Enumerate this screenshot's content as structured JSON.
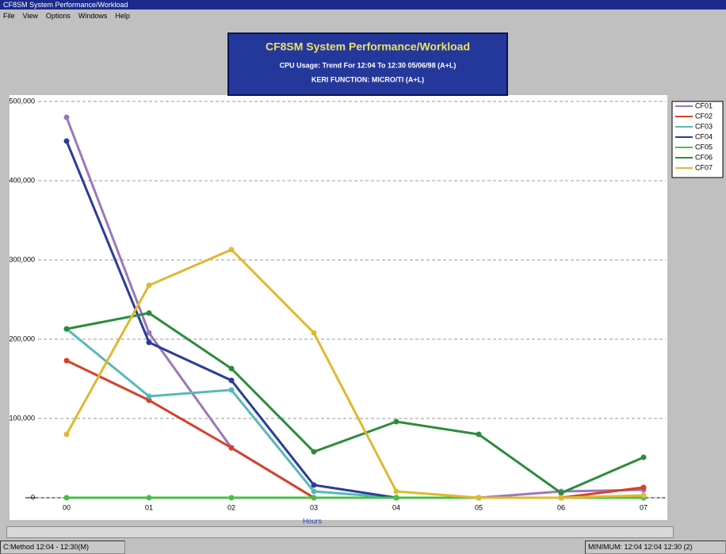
{
  "window": {
    "title": "CF8SM System Performance/Workload",
    "menu": [
      "File",
      "View",
      "Options",
      "Windows",
      "Help"
    ],
    "status_left": "C:Method 12:04 - 12:30(M)",
    "status_right": "MINIMUM: 12:04 12:04 12:30 (2)"
  },
  "chart_data": {
    "type": "line",
    "title": "CF8SM System Performance/Workload",
    "subtitle": "CPU Usage: Trend For 12:04 To 12:30 05/06/98 (A+L)",
    "subtitle2": "KERI FUNCTION: MICRO/TI (A+L)",
    "x_label": "Hours",
    "categories": [
      "00",
      "01",
      "02",
      "03",
      "04",
      "05",
      "06",
      "07"
    ],
    "ylim": [
      0,
      500000
    ],
    "yticks": [
      0,
      {
        "value": 100000,
        "label": "100,000"
      },
      {
        "value": 200000,
        "label": "200,000"
      },
      {
        "value": 300000,
        "label": "300,000"
      },
      {
        "value": 400000,
        "label": "400,000"
      },
      {
        "value": 500000,
        "label": "500,000"
      }
    ],
    "grid": true,
    "legend": "right",
    "series": [
      {
        "name": "CF01",
        "color": "#9a78b8",
        "values": [
          480000,
          208000,
          63000,
          0,
          0,
          0,
          8000,
          10000
        ]
      },
      {
        "name": "CF02",
        "color": "#d8402a",
        "values": [
          173000,
          123000,
          63000,
          0,
          0,
          0,
          0,
          13000
        ]
      },
      {
        "name": "CF03",
        "color": "#58b8b8",
        "values": [
          213000,
          128000,
          136000,
          8000,
          0,
          0,
          0,
          0
        ]
      },
      {
        "name": "CF04",
        "color": "#2a3c9c",
        "values": [
          450000,
          196000,
          148000,
          16000,
          0,
          0,
          0,
          0
        ]
      },
      {
        "name": "CF05",
        "color": "#48c048",
        "values": [
          0,
          0,
          0,
          0,
          0,
          0,
          0,
          0
        ]
      },
      {
        "name": "CF06",
        "color": "#2a8c3c",
        "values": [
          213000,
          233000,
          163000,
          58000,
          96000,
          80000,
          6000,
          51000
        ]
      },
      {
        "name": "CF07",
        "color": "#e0b830",
        "values": [
          80000,
          268000,
          313000,
          208000,
          8000,
          0,
          0,
          3000
        ]
      }
    ]
  }
}
